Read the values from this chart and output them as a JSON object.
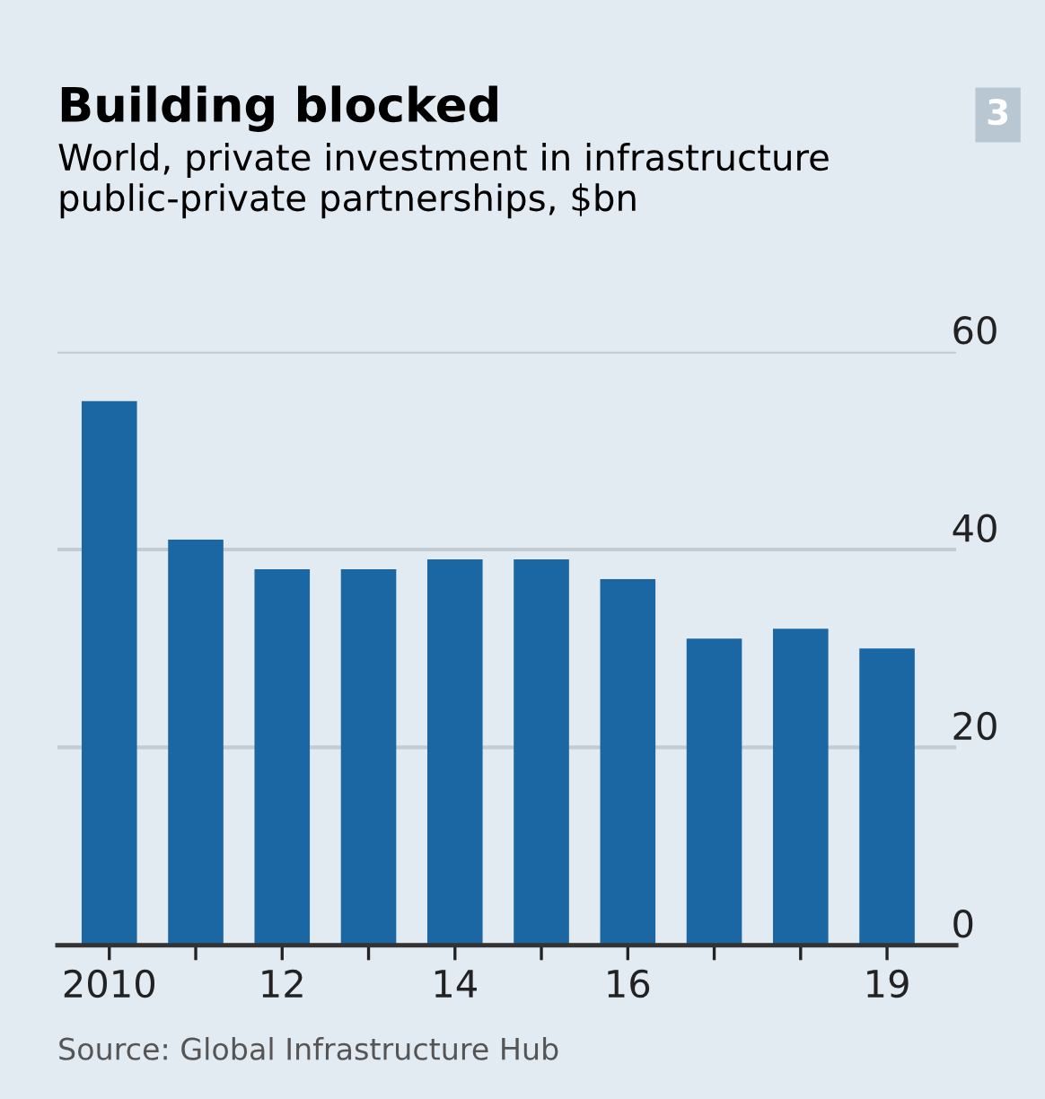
{
  "chart_data": {
    "type": "bar",
    "title": "Building blocked",
    "subtitle": "World, private investment in infrastructure\npublic-private partnerships, $bn",
    "categories": [
      "2010",
      null,
      "12",
      null,
      "14",
      null,
      "16",
      null,
      null,
      "19"
    ],
    "values": [
      55,
      41,
      38,
      38,
      39,
      39,
      37,
      31,
      32,
      30
    ],
    "color": "#1a67a3",
    "ylim": [
      0,
      60
    ],
    "yticks": [
      0,
      20,
      40,
      60
    ],
    "grid": "y",
    "annotations": [
      "Source: Global Infrastructure Hub",
      "3"
    ]
  }
}
